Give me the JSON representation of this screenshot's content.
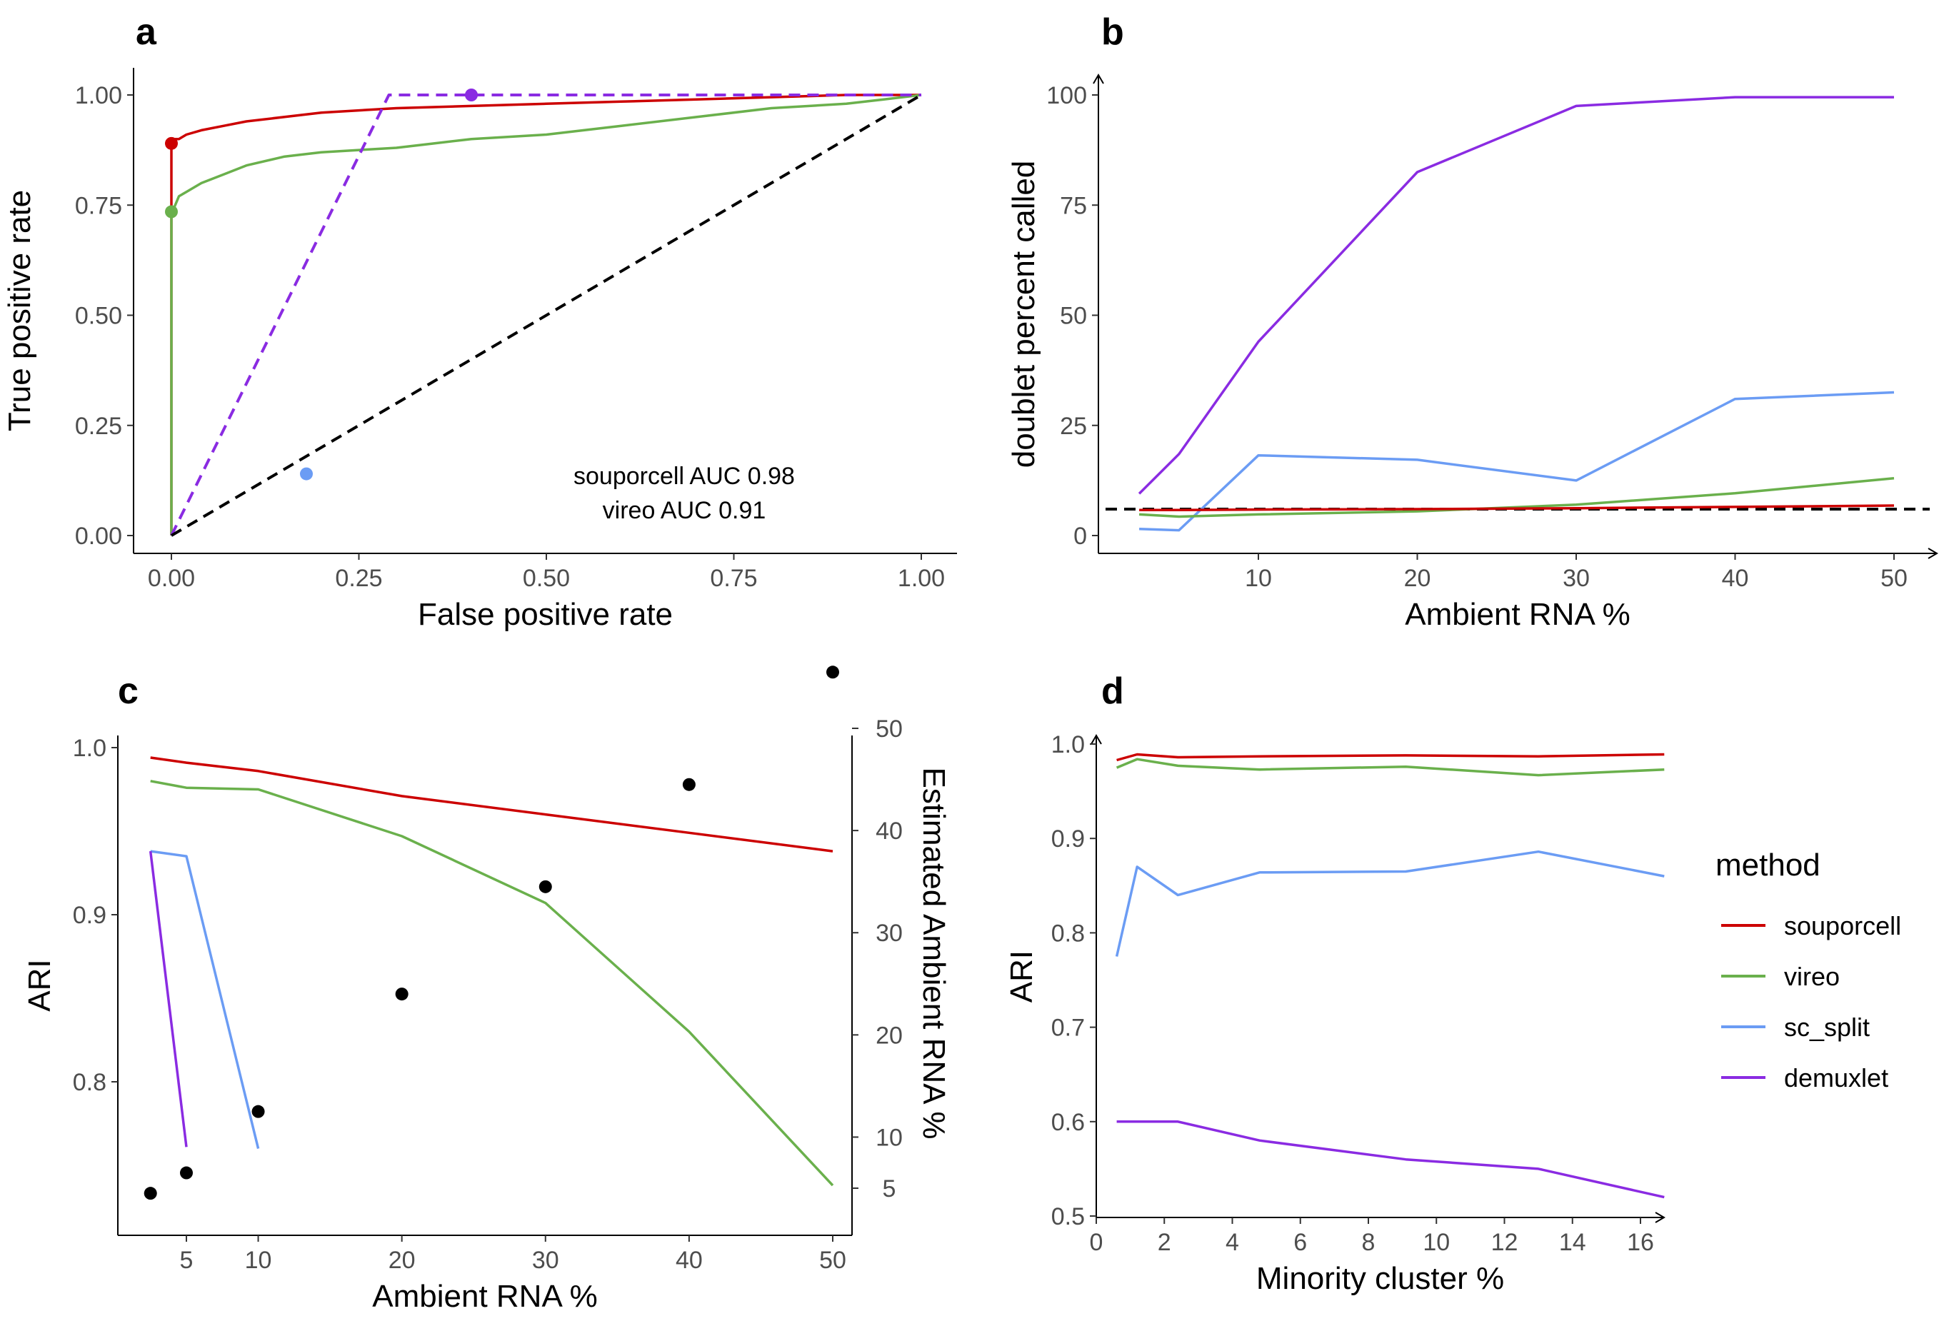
{
  "chart_data": [
    {
      "panel": "a",
      "type": "line",
      "xlabel": "False positive rate",
      "ylabel": "True positive rate",
      "xlim": [
        0,
        1
      ],
      "ylim": [
        0,
        1
      ],
      "xticks": [
        "0.00",
        "0.25",
        "0.50",
        "0.75",
        "1.00"
      ],
      "yticks": [
        "0.00",
        "0.25",
        "0.50",
        "0.75",
        "1.00"
      ],
      "annotations": [
        "souporcell AUC 0.98",
        "vireo AUC 0.91"
      ],
      "series": [
        {
          "key": "souporcell",
          "color": "#cc0000",
          "x": [
            0,
            0,
            0,
            0.005,
            0.01,
            0.02,
            0.04,
            0.07,
            0.1,
            0.15,
            0.2,
            0.25,
            0.3,
            0.4,
            0.5,
            0.6,
            0.7,
            0.8,
            0.9,
            1.0
          ],
          "y": [
            0,
            0.05,
            0.88,
            0.9,
            0.9,
            0.91,
            0.92,
            0.93,
            0.94,
            0.95,
            0.96,
            0.965,
            0.97,
            0.975,
            0.98,
            0.985,
            0.99,
            0.995,
            1.0,
            1.0
          ]
        },
        {
          "key": "vireo",
          "color": "#6ab04c",
          "x": [
            0,
            0,
            0,
            0.005,
            0.01,
            0.02,
            0.04,
            0.07,
            0.1,
            0.15,
            0.2,
            0.25,
            0.3,
            0.35,
            0.4,
            0.5,
            0.6,
            0.7,
            0.8,
            0.9,
            0.95,
            1.0
          ],
          "y": [
            0,
            0.03,
            0.73,
            0.75,
            0.77,
            0.78,
            0.8,
            0.82,
            0.84,
            0.86,
            0.87,
            0.875,
            0.88,
            0.89,
            0.9,
            0.91,
            0.93,
            0.95,
            0.97,
            0.98,
            0.99,
            1.0
          ]
        },
        {
          "key": "demuxlet",
          "color": "#8a2be2",
          "dashed": true,
          "x": [
            0,
            0.29,
            1.0
          ],
          "y": [
            0,
            1.0,
            1.0
          ]
        },
        {
          "key": "chance",
          "color": "#000000",
          "dashed": true,
          "x": [
            0,
            1
          ],
          "y": [
            0,
            1
          ]
        }
      ],
      "points": [
        {
          "key": "souporcell",
          "x": 0.0,
          "y": 0.89,
          "color": "#cc0000"
        },
        {
          "key": "vireo",
          "x": 0.0,
          "y": 0.735,
          "color": "#6ab04c"
        },
        {
          "key": "demuxlet",
          "x": 0.4,
          "y": 1.0,
          "color": "#8a2be2"
        },
        {
          "key": "sc_split",
          "x": 0.18,
          "y": 0.14,
          "color": "#6b9cf4"
        }
      ]
    },
    {
      "panel": "b",
      "type": "line",
      "xlabel": "Ambient RNA %",
      "ylabel": "doublet percent called",
      "xlim": [
        0,
        51
      ],
      "ylim": [
        0,
        100
      ],
      "xticks": [
        10,
        20,
        30,
        40,
        50
      ],
      "yticks": [
        0,
        25,
        50,
        75,
        100
      ],
      "reference_line": {
        "y": 6,
        "dashed": true,
        "color": "#000000"
      },
      "series": [
        {
          "key": "demuxlet",
          "color": "#8a2be2",
          "x": [
            2.5,
            5,
            10,
            20,
            30,
            40,
            50
          ],
          "y": [
            9.5,
            18.5,
            44,
            82.5,
            97.5,
            99.5,
            99.5
          ]
        },
        {
          "key": "sc_split",
          "color": "#6b9cf4",
          "x": [
            2.5,
            5,
            10,
            20,
            30,
            40,
            50
          ],
          "y": [
            1.5,
            1.2,
            18.2,
            17.2,
            12.5,
            31,
            32.5
          ]
        },
        {
          "key": "vireo",
          "color": "#6ab04c",
          "x": [
            2.5,
            5,
            10,
            20,
            30,
            40,
            50
          ],
          "y": [
            4.8,
            4.3,
            4.8,
            5.5,
            7,
            9.6,
            13
          ]
        },
        {
          "key": "souporcell",
          "color": "#cc0000",
          "x": [
            2.5,
            5,
            10,
            20,
            30,
            40,
            50
          ],
          "y": [
            5.8,
            5.8,
            5.9,
            6,
            6.2,
            6.5,
            6.8
          ]
        }
      ]
    },
    {
      "panel": "c",
      "type": "line",
      "xlabel": "Ambient RNA %",
      "ylabel": "ARI",
      "y2label": "Estimated Ambient RNA %",
      "xlim": [
        0,
        52.5
      ],
      "ylim": [
        0.725,
        1.0
      ],
      "y2lim": [
        1.5,
        60.5
      ],
      "xticks": [
        5,
        10,
        20,
        30,
        40,
        50
      ],
      "yticks": [
        "0.8",
        "0.9",
        "1.0"
      ],
      "y2ticks": [
        5,
        10,
        20,
        30,
        40,
        50
      ],
      "series": [
        {
          "key": "souporcell",
          "color": "#cc0000",
          "x": [
            2.5,
            5,
            10,
            20,
            30,
            40,
            50
          ],
          "y": [
            0.994,
            0.991,
            0.986,
            0.971,
            0.96,
            0.949,
            0.938
          ]
        },
        {
          "key": "vireo",
          "color": "#6ab04c",
          "x": [
            2.5,
            5,
            10,
            20,
            30,
            40,
            50
          ],
          "y": [
            0.98,
            0.976,
            0.975,
            0.947,
            0.907,
            0.83,
            0.738
          ]
        },
        {
          "key": "sc_split",
          "color": "#6b9cf4",
          "x": [
            2.5,
            5,
            10
          ],
          "y": [
            0.938,
            0.935,
            0.76
          ]
        },
        {
          "key": "demuxlet",
          "color": "#8a2be2",
          "x": [
            2.5,
            5
          ],
          "y": [
            0.938,
            0.761
          ]
        }
      ],
      "points_y2": [
        {
          "x": 2.5,
          "y": 4.5
        },
        {
          "x": 5,
          "y": 6.5
        },
        {
          "x": 10,
          "y": 12.5
        },
        {
          "x": 20,
          "y": 24
        },
        {
          "x": 30,
          "y": 34.5
        },
        {
          "x": 40,
          "y": 44.5
        },
        {
          "x": 50,
          "y": 55.5
        }
      ]
    },
    {
      "panel": "d",
      "type": "line",
      "xlabel": "Minority cluster %",
      "ylabel": "ARI",
      "xlim": [
        0,
        17.5
      ],
      "ylim": [
        0.5,
        1.0
      ],
      "xticks": [
        0,
        2,
        4,
        6,
        8,
        10,
        12,
        14,
        16
      ],
      "yticks": [
        "0.5",
        "0.6",
        "0.7",
        "0.8",
        "0.9",
        "1.0"
      ],
      "series": [
        {
          "key": "souporcell",
          "color": "#cc0000",
          "x": [
            0.6,
            1.2,
            2.4,
            4.8,
            9.1,
            13,
            16.7
          ],
          "y": [
            0.983,
            0.989,
            0.986,
            0.987,
            0.988,
            0.987,
            0.989
          ]
        },
        {
          "key": "vireo",
          "color": "#6ab04c",
          "x": [
            0.6,
            1.2,
            2.4,
            4.8,
            9.1,
            13,
            16.7
          ],
          "y": [
            0.975,
            0.984,
            0.977,
            0.973,
            0.976,
            0.967,
            0.973
          ]
        },
        {
          "key": "sc_split",
          "color": "#6b9cf4",
          "x": [
            0.6,
            1.2,
            2.4,
            4.8,
            9.1,
            13,
            16.7
          ],
          "y": [
            0.775,
            0.87,
            0.84,
            0.864,
            0.865,
            0.886,
            0.86
          ]
        },
        {
          "key": "demuxlet",
          "color": "#8a2be2",
          "x": [
            0.6,
            1.2,
            2.4,
            4.8,
            9.1,
            13,
            16.7
          ],
          "y": [
            0.6,
            0.6,
            0.6,
            0.58,
            0.56,
            0.55,
            0.52
          ]
        }
      ]
    }
  ],
  "panel_labels": [
    "a",
    "b",
    "c",
    "d"
  ],
  "legend": {
    "title": "method",
    "items": [
      {
        "label": "souporcell",
        "color": "#cc0000"
      },
      {
        "label": "vireo",
        "color": "#6ab04c"
      },
      {
        "label": "sc_split",
        "color": "#6b9cf4"
      },
      {
        "label": "demuxlet",
        "color": "#8a2be2"
      }
    ]
  }
}
